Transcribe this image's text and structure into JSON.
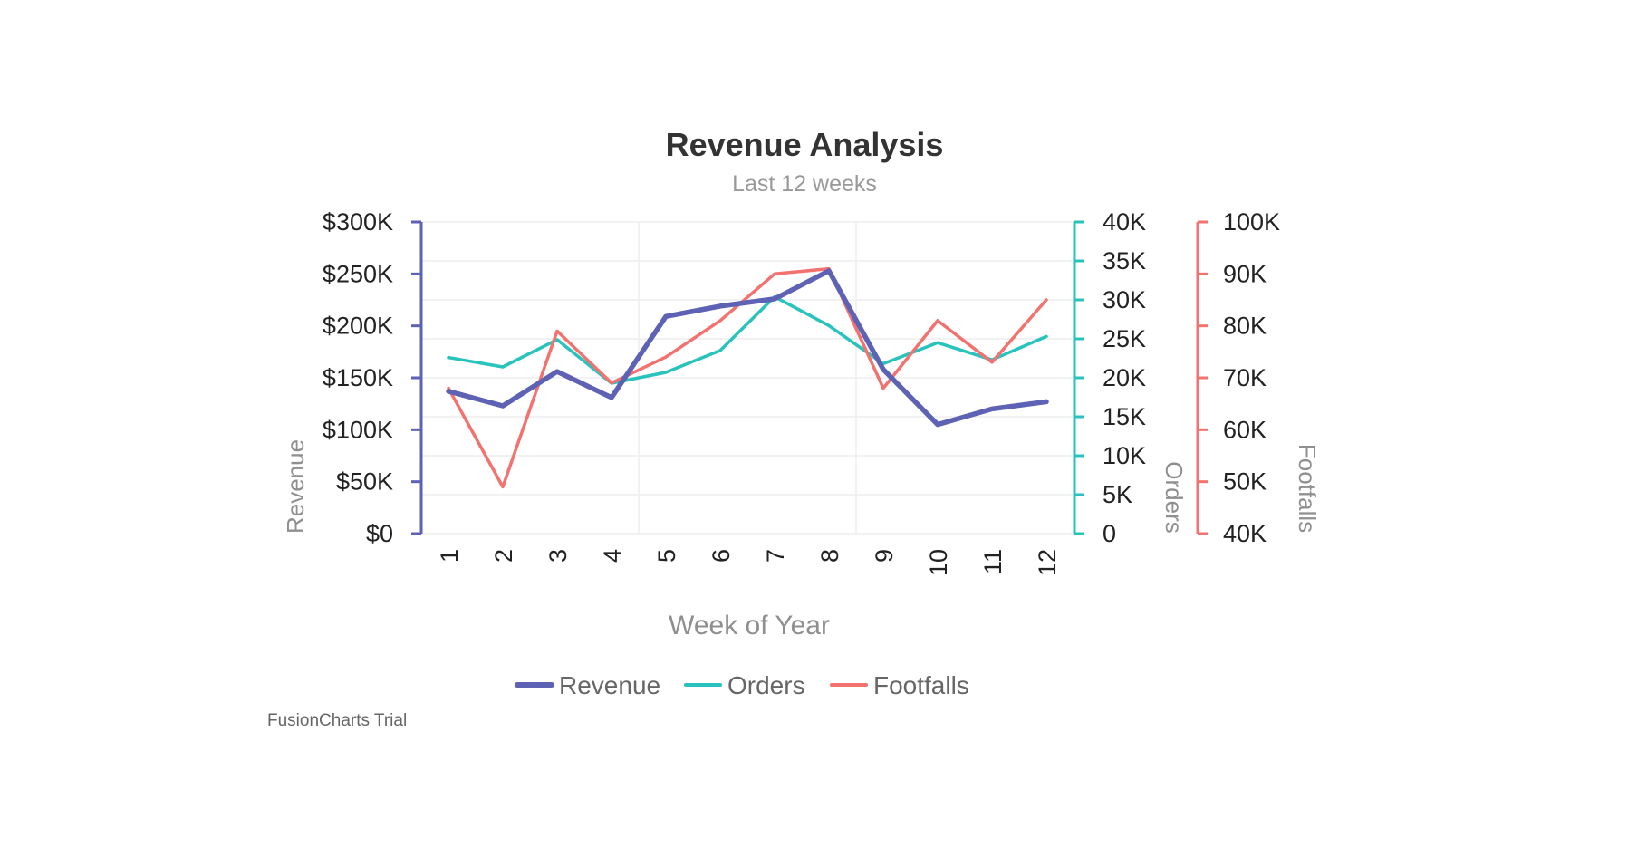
{
  "chart_data": {
    "type": "line",
    "title": "Revenue Analysis",
    "subtitle": "Last 12 weeks",
    "xlabel": "Week of Year",
    "categories": [
      "1",
      "2",
      "3",
      "4",
      "5",
      "6",
      "7",
      "8",
      "9",
      "10",
      "11",
      "12"
    ],
    "series": [
      {
        "name": "Revenue",
        "axis": "revenue",
        "color": "#5d62b5",
        "values": [
          137000,
          123000,
          156000,
          131000,
          209000,
          219000,
          226000,
          253000,
          158000,
          105000,
          120000,
          127000
        ]
      },
      {
        "name": "Orders",
        "axis": "orders",
        "color": "#29c3be",
        "values": [
          22600,
          21400,
          24900,
          19300,
          20700,
          23500,
          30400,
          26700,
          21800,
          24500,
          22300,
          25300
        ]
      },
      {
        "name": "Footfalls",
        "axis": "footfalls",
        "color": "#f2726f",
        "values": [
          68000,
          49000,
          79000,
          69000,
          74000,
          81000,
          90000,
          91000,
          68000,
          81000,
          73000,
          85000
        ]
      }
    ],
    "axes": {
      "revenue": {
        "label": "Revenue",
        "ylim": [
          0,
          300000
        ],
        "ticks": [
          "$0",
          "$50K",
          "$100K",
          "$150K",
          "$200K",
          "$250K",
          "$300K"
        ],
        "color": "#5d62b5"
      },
      "orders": {
        "label": "Orders",
        "ylim": [
          0,
          40000
        ],
        "ticks": [
          "0",
          "5K",
          "10K",
          "15K",
          "20K",
          "25K",
          "30K",
          "35K",
          "40K"
        ],
        "color": "#29c3be"
      },
      "footfalls": {
        "label": "Footfalls",
        "ylim": [
          40000,
          100000
        ],
        "ticks": [
          "40K",
          "50K",
          "60K",
          "70K",
          "80K",
          "90K",
          "100K"
        ],
        "color": "#f2726f"
      }
    },
    "legend": {
      "position": "bottom",
      "items": [
        "Revenue",
        "Orders",
        "Footfalls"
      ]
    },
    "grid": true
  },
  "watermark": "FusionCharts Trial"
}
